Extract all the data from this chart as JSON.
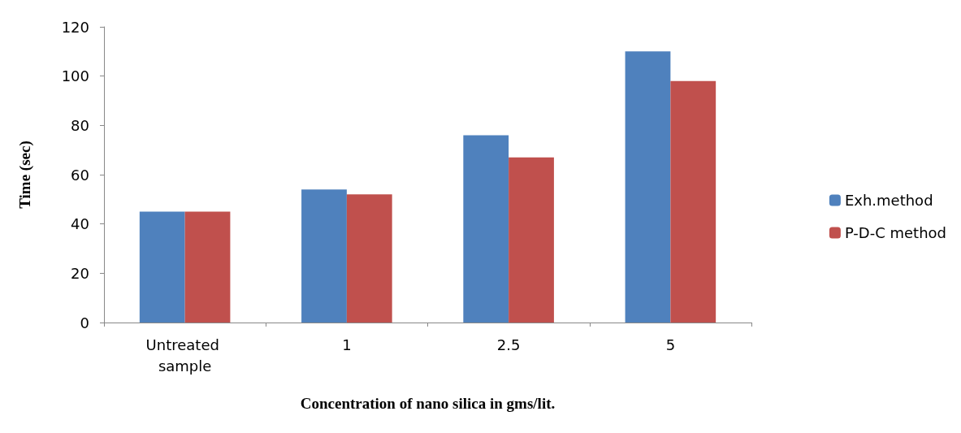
{
  "chart_data": {
    "type": "bar",
    "xlabel": "Concentration of nano silica in gms/lit.",
    "ylabel": "Time (sec)",
    "categories": [
      "Untreated sample",
      "1",
      "2.5",
      "5"
    ],
    "series": [
      {
        "name": "Exh.method",
        "color": "#4f81bd",
        "values": [
          45,
          54,
          76,
          110
        ]
      },
      {
        "name": "P-D-C method",
        "color": "#c0504d",
        "values": [
          45,
          52,
          67,
          98
        ]
      }
    ],
    "ylim": [
      0,
      120
    ],
    "yticks": [
      0,
      20,
      40,
      60,
      80,
      100,
      120
    ],
    "grid": false,
    "legend": "right"
  }
}
